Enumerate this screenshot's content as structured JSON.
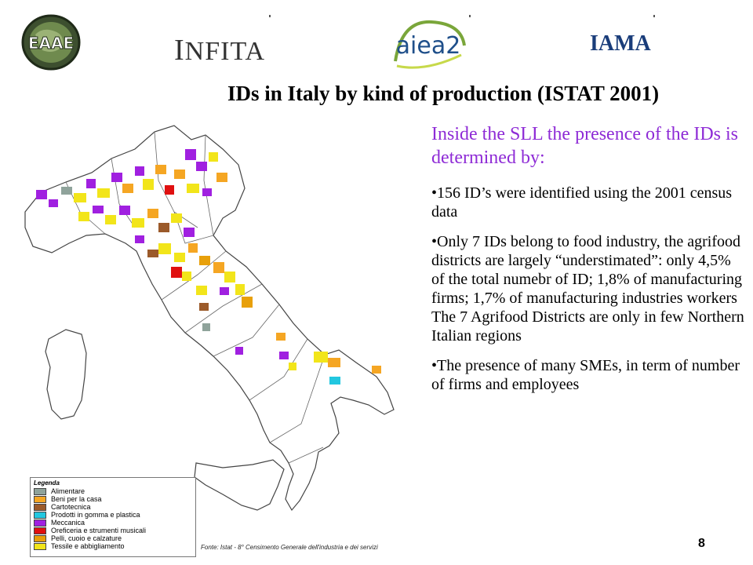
{
  "header": {
    "logos": {
      "eaae": "EAAE",
      "infita_first": "I",
      "infita_rest": "NFITA",
      "aiea": "aiea2",
      "iama": "IAMA"
    }
  },
  "slide": {
    "title": "IDs in Italy by kind of production (ISTAT 2001)",
    "intro": "Inside the SLL the presence of the IDs is determined by:",
    "bullets": [
      "•156 ID’s were identified using the 2001 census data",
      "•Only 7 IDs belong to food industry, the agrifood districts are largely “understimated”: only 4,5% of the total numebr of ID; 1,8% of manufacturing firms; 1,7% of manufacturing industries workers The 7 Agrifood Districts are only in few Northern Italian regions",
      "•The presence of many SMEs, in term of number of firms and employees"
    ],
    "page_number": "8"
  },
  "map": {
    "legend_title": "Legenda",
    "legend": [
      {
        "label": "Alimentare",
        "color": "#8fa39b"
      },
      {
        "label": "Beni per la casa",
        "color": "#f5a623"
      },
      {
        "label": "Cartotecnica",
        "color": "#9b5a2a"
      },
      {
        "label": "Prodotti in gomma e plastica",
        "color": "#22c7e0"
      },
      {
        "label": "Meccanica",
        "color": "#a020e0"
      },
      {
        "label": "Oreficeria e strumenti musicali",
        "color": "#e01010"
      },
      {
        "label": "Pelli, cuoio e calzature",
        "color": "#e8a00a"
      },
      {
        "label": "Tessile e abbigliamento",
        "color": "#f2e51a"
      }
    ],
    "source": "Fonte: Istat - 8° Censimento Generale dell'industria e dei servizi"
  }
}
